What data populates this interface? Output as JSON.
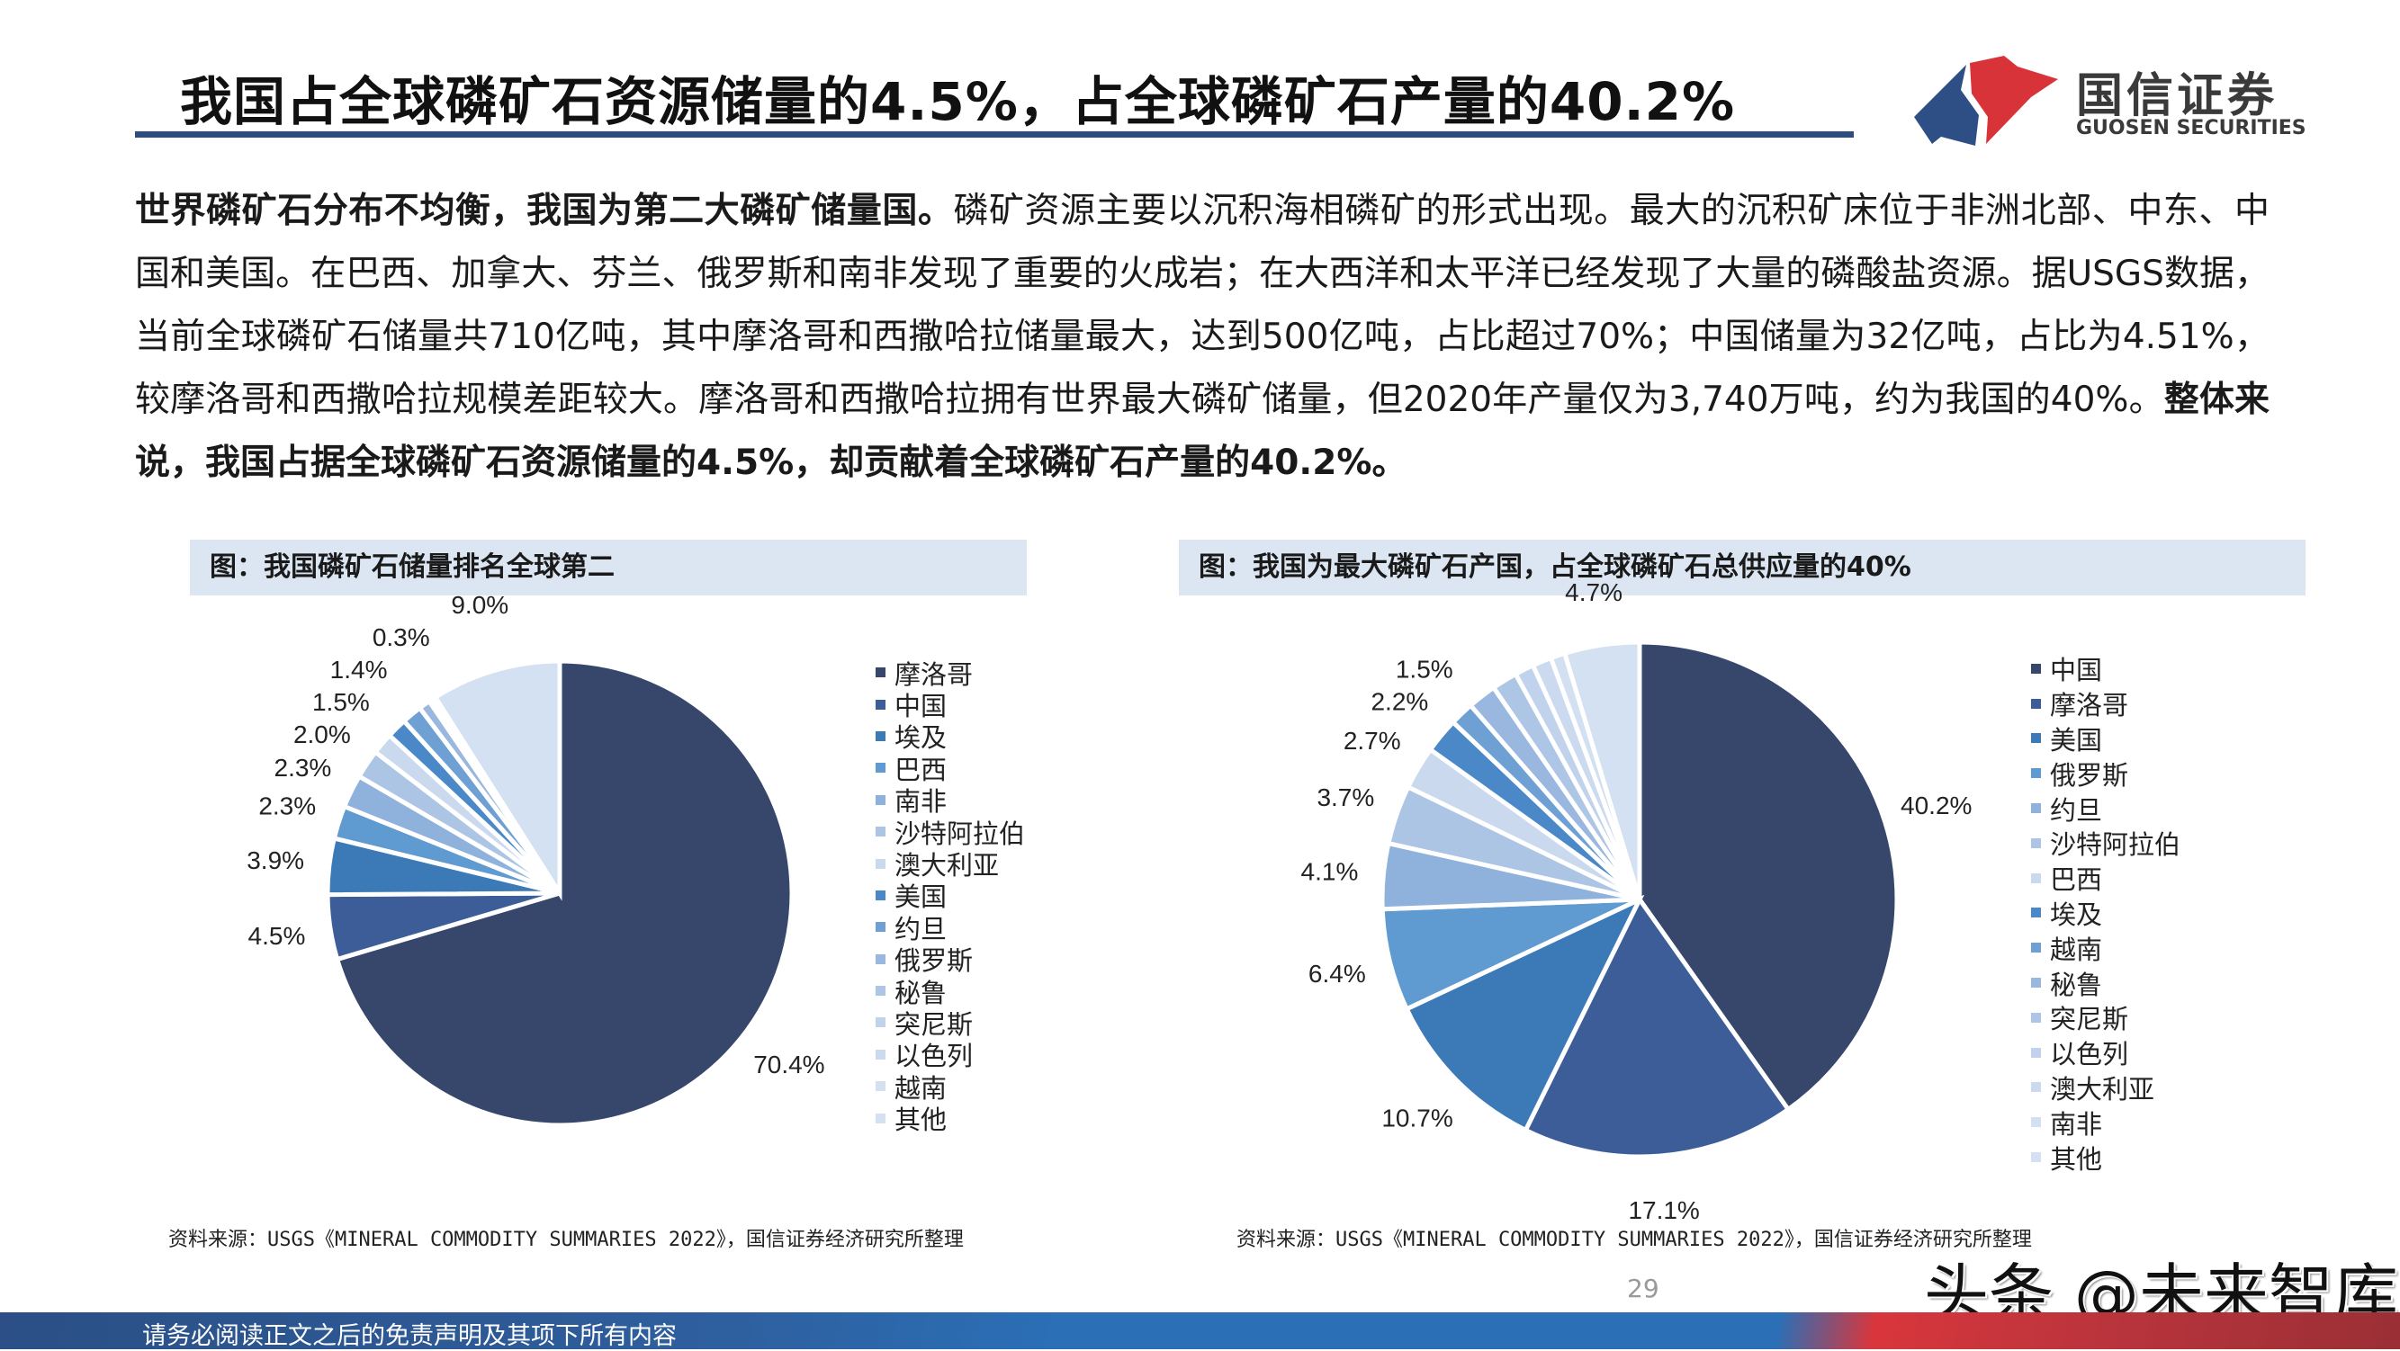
{
  "header": {
    "title": "我国占全球磷矿石资源储量的4.5%，占全球磷矿石产量的40.2%",
    "logo_cn": "国信证券",
    "logo_en": "GUOSEN SECURITIES",
    "colors": {
      "rule": "#2d4d7f",
      "logo_blue": "#2d4f86",
      "logo_red": "#d9333a"
    }
  },
  "paragraph": [
    {
      "text": "世界磷矿石分布不均衡，我国为第二大磷矿储量国。",
      "bold": true
    },
    {
      "text": "磷矿资源主要以沉积海相磷矿的形式出现。最大的沉积矿床位于非洲北部、中东、中国和美国。在巴西、加拿大、芬兰、俄罗斯和南非发现了重要的火成岩；在大西洋和太平洋已经发现了大量的磷酸盐资源。据USGS数据，当前全球磷矿石储量共710亿吨，其中摩洛哥和西撒哈拉储量最大，达到500亿吨，占比超过70%；中国储量为32亿吨，占比为4.51%，较摩洛哥和西撒哈拉规模差距较大。摩洛哥和西撒哈拉拥有世界最大磷矿储量，但2020年产量仅为3,740万吨，约为我国的40%。",
      "bold": false
    },
    {
      "text": "整体来说，我国占据全球磷矿石资源储量的4.5%，却贡献着全球磷矿石产量的40.2%。",
      "bold": true
    }
  ],
  "charts": {
    "left_heading": "图：我国磷矿石储量排名全球第二",
    "right_heading": "图：我国为最大磷矿石产国，占全球磷矿石总供应量的40%",
    "left_source": "资料来源：USGS《MINERAL COMMODITY SUMMARIES 2022》，国信证券经济研究所整理",
    "right_source": "资料来源：USGS《MINERAL COMMODITY SUMMARIES 2022》，国信证券经济研究所整理"
  },
  "chart_data": [
    {
      "type": "pie",
      "title": "图：我国磷矿石储量排名全球第二",
      "unit": "%",
      "start": "12 o'clock, clockwise",
      "legend_position": "right",
      "categories": [
        "摩洛哥",
        "中国",
        "埃及",
        "巴西",
        "南非",
        "沙特阿拉伯",
        "澳大利亚",
        "美国",
        "约旦",
        "俄罗斯",
        "秘鲁",
        "突尼斯",
        "以色列",
        "越南",
        "其他"
      ],
      "values": [
        70.4,
        4.5,
        3.9,
        2.3,
        2.3,
        2.0,
        1.5,
        1.4,
        1.4,
        0.8,
        0.3,
        0.1,
        0.1,
        0.0,
        9.0
      ],
      "labels": [
        "70.4%",
        "4.5%",
        "3.9%",
        "2.3%",
        "2.3%",
        "2.0%",
        "1.5%",
        "1.4%",
        "",
        "",
        "0.3%",
        "",
        "",
        "",
        "9.0%"
      ],
      "colors": [
        "#36476b",
        "#3d5d99",
        "#3b79b7",
        "#5f9bd0",
        "#8fb2dd",
        "#adc5e5",
        "#cad9ee",
        "#4a88c7",
        "#6fa0d4",
        "#99b7df",
        "#aec6e6",
        "#c1d3ec",
        "#cbdaef",
        "#d3e0f1",
        "#d4e1f2"
      ]
    },
    {
      "type": "pie",
      "title": "图：我国为最大磷矿石产国，占全球磷矿石总供应量的40%",
      "unit": "%",
      "start": "12 o'clock, clockwise",
      "legend_position": "right",
      "categories": [
        "中国",
        "摩洛哥",
        "美国",
        "俄罗斯",
        "约旦",
        "沙特阿拉伯",
        "巴西",
        "埃及",
        "越南",
        "秘鲁",
        "突尼斯",
        "以色列",
        "澳大利亚",
        "南非",
        "其他"
      ],
      "values": [
        40.2,
        17.1,
        10.7,
        6.4,
        4.1,
        3.7,
        2.7,
        2.2,
        1.5,
        1.8,
        1.6,
        1.2,
        1.2,
        0.9,
        4.7
      ],
      "labels": [
        "40.2%",
        "17.1%",
        "10.7%",
        "6.4%",
        "4.1%",
        "3.7%",
        "2.7%",
        "2.2%",
        "1.5%",
        "",
        "",
        "",
        "",
        "",
        "4.7%"
      ],
      "colors": [
        "#36476b",
        "#3d5d99",
        "#3b79b7",
        "#5f9bd0",
        "#8fb2dd",
        "#adc5e5",
        "#cad9ee",
        "#4a88c7",
        "#6fa0d4",
        "#99b7df",
        "#aec6e6",
        "#c1d3ec",
        "#cbdaef",
        "#d3e0f1",
        "#d4e1f2"
      ]
    }
  ],
  "page_number": "29",
  "watermark": "头条 @未来智库",
  "footer": {
    "disclaimer": "请务必阅读正文之后的免责声明及其项下所有内容"
  }
}
